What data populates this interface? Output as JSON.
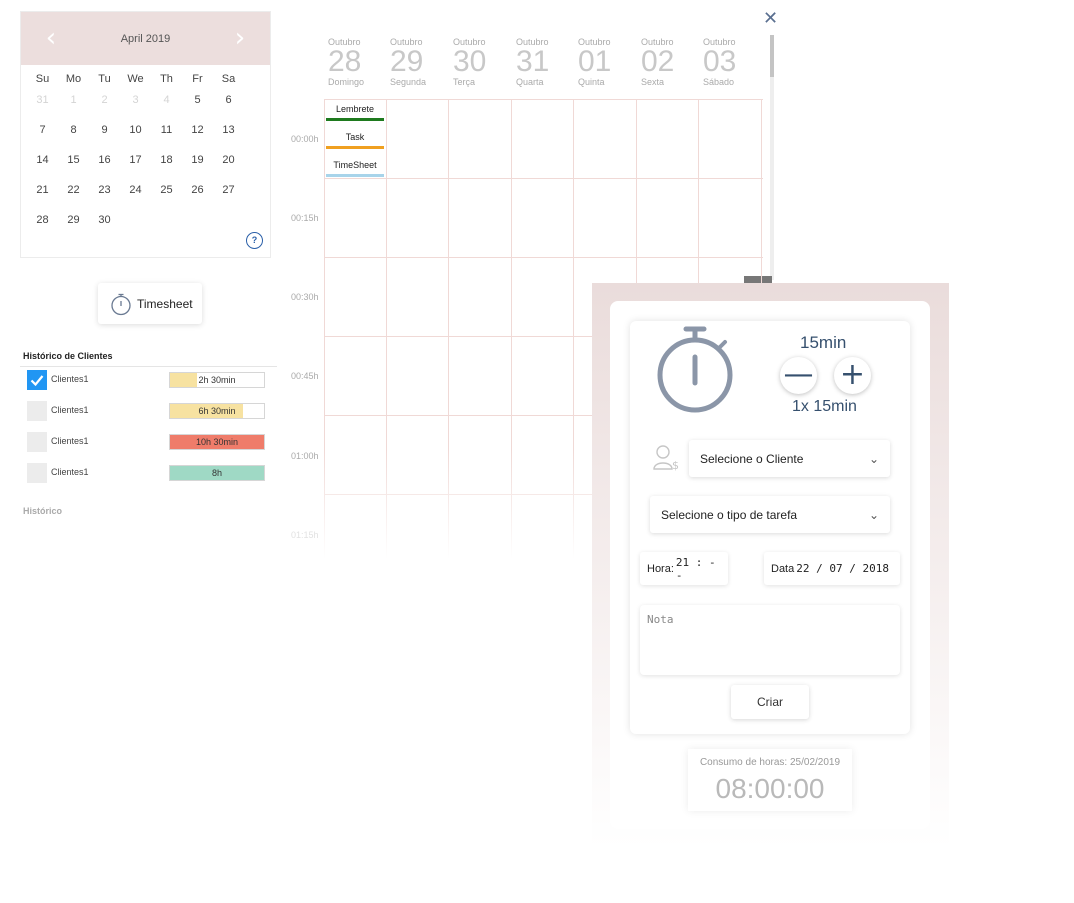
{
  "mini_calendar": {
    "month_title": "April 2019",
    "weekdays": [
      "Su",
      "Mo",
      "Tu",
      "We",
      "Th",
      "Fr",
      "Sa"
    ],
    "weeks": [
      [
        {
          "d": "31",
          "m": true
        },
        {
          "d": "1",
          "m": true
        },
        {
          "d": "2",
          "m": true
        },
        {
          "d": "3",
          "m": true
        },
        {
          "d": "4",
          "m": true
        },
        {
          "d": "5"
        },
        {
          "d": "6"
        }
      ],
      [
        {
          "d": "7"
        },
        {
          "d": "8"
        },
        {
          "d": "9"
        },
        {
          "d": "10"
        },
        {
          "d": "11"
        },
        {
          "d": "12"
        },
        {
          "d": "13"
        }
      ],
      [
        {
          "d": "14"
        },
        {
          "d": "15"
        },
        {
          "d": "16"
        },
        {
          "d": "17"
        },
        {
          "d": "18"
        },
        {
          "d": "19"
        },
        {
          "d": "20"
        }
      ],
      [
        {
          "d": "21"
        },
        {
          "d": "22"
        },
        {
          "d": "23"
        },
        {
          "d": "24"
        },
        {
          "d": "25"
        },
        {
          "d": "26"
        },
        {
          "d": "27"
        }
      ],
      [
        {
          "d": "28"
        },
        {
          "d": "29"
        },
        {
          "d": "30"
        }
      ]
    ],
    "help_icon": "?"
  },
  "timesheet_button": {
    "label": "Timesheet"
  },
  "client_history": {
    "title": "Histórico de Clientes",
    "rows": [
      {
        "name": "Clientes1",
        "checked": true,
        "bar_label": "2h 30min",
        "fill": 0.29,
        "color": "#f7e2a1"
      },
      {
        "name": "Clientes1",
        "checked": false,
        "bar_label": "6h 30min",
        "fill": 0.78,
        "color": "#f7e2a1"
      },
      {
        "name": "Clientes1",
        "checked": false,
        "bar_label": "10h 30min",
        "fill": 1.0,
        "color": "#ef7c6a"
      },
      {
        "name": "Clientes1",
        "checked": false,
        "bar_label": "8h",
        "fill": 1.0,
        "color": "#9fd9c5"
      }
    ]
  },
  "history_title": "Histórico",
  "close_icon": "✕",
  "week_days": [
    {
      "month": "Outubro",
      "num": "28",
      "name": "Domingo"
    },
    {
      "month": "Outubro",
      "num": "29",
      "name": "Segunda"
    },
    {
      "month": "Outubro",
      "num": "30",
      "name": "Terça"
    },
    {
      "month": "Outubro",
      "num": "31",
      "name": "Quarta"
    },
    {
      "month": "Outubro",
      "num": "01",
      "name": "Quinta"
    },
    {
      "month": "Outubro",
      "num": "02",
      "name": "Sexta"
    },
    {
      "month": "Outubro",
      "num": "03",
      "name": "Sábado"
    }
  ],
  "time_labels": [
    "00:00h",
    "00:15h",
    "00:30h",
    "00:45h",
    "01:00h",
    "01:15h"
  ],
  "legend": [
    {
      "label": "Lembrete",
      "color": "#1e7a1e"
    },
    {
      "label": "Task",
      "color": "#f0a020"
    },
    {
      "label": "TimeSheet",
      "color": "#a8d4ea"
    }
  ],
  "form": {
    "step_value": "15min",
    "minus": "—",
    "plus": "+",
    "multiplier": "1x 15min",
    "client_select": "Selecione o Cliente",
    "task_select": "Selecione o tipo de tarefa",
    "hora_label": "Hora:",
    "hora_value": "21 : - -",
    "data_label": "Data",
    "data_value": "22 / 07 / 2018",
    "nota_placeholder": "Nota",
    "criar": "Criar",
    "chevron": "⌄"
  },
  "consumo": {
    "label": "Consumo de horas: 25/02/2019",
    "value": "08:00:00"
  }
}
